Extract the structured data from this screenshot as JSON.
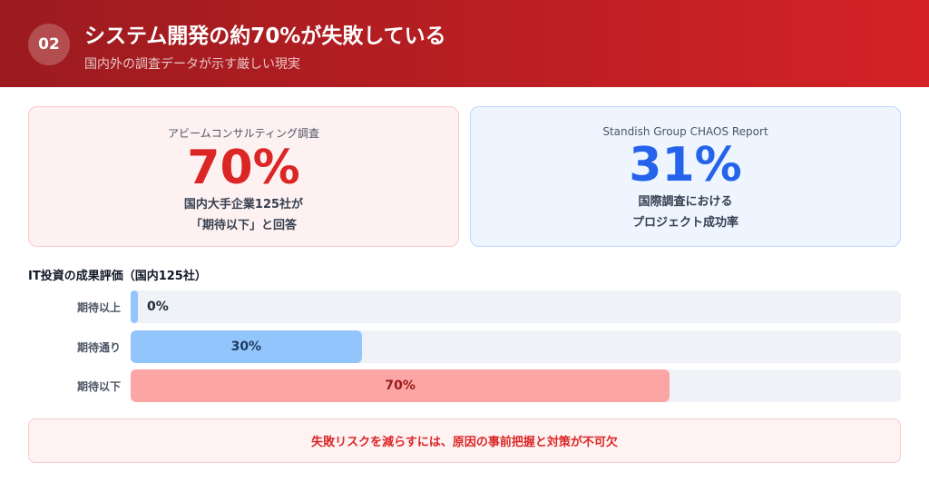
{
  "header": {
    "number": "02",
    "title": "システム開発の約70%が失敗している",
    "subtitle": "国内外の調査データが示す厳しい現実"
  },
  "cards": [
    {
      "source": "アビームコンサルティング調査",
      "value": "70%",
      "desc1": "国内大手企業125社が",
      "desc2": "「期待以下」と回答"
    },
    {
      "source": "Standish Group CHAOS Report",
      "value": "31%",
      "desc1": "国際調査における",
      "desc2": "プロジェクト成功率"
    }
  ],
  "chart_data": {
    "type": "bar",
    "title": "IT投資の成果評価（国内125社）",
    "categories": [
      "期待以上",
      "期待通り",
      "期待以下"
    ],
    "values": [
      0,
      30,
      70
    ],
    "labels": [
      "0%",
      "30%",
      "70%"
    ],
    "colors": [
      "#93c5fd",
      "#93c5fd",
      "#fca5a5"
    ],
    "label_colors": [
      "#1f2937",
      "#1e3a5f",
      "#991b1b"
    ],
    "xlim": [
      0,
      100
    ]
  },
  "note": "失敗リスクを減らすには、原因の事前把握と対策が不可欠"
}
